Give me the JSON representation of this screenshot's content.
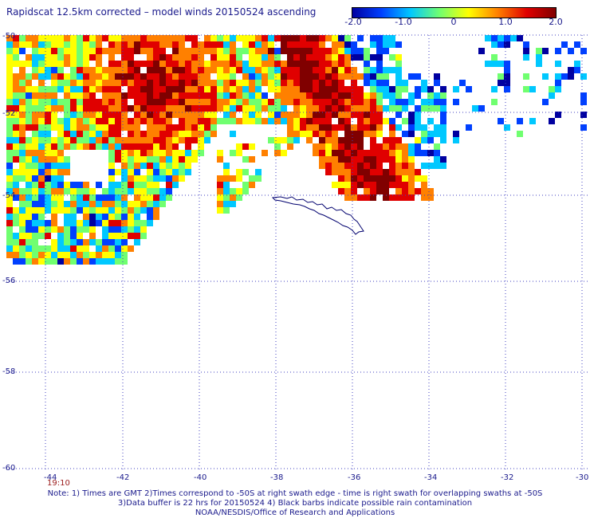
{
  "title": "Rapidscat 12.5km corrected – model winds 20150524 ascending",
  "colorbar": {
    "labels": [
      "-2.0",
      "-1.0",
      "0",
      "1.0",
      "2.0"
    ],
    "stops": [
      "#0000a0",
      "#0040ff",
      "#00c8ff",
      "#70ff70",
      "#ffff00",
      "#ff8000",
      "#e00000",
      "#800000"
    ]
  },
  "map": {
    "lat_labels": [
      "-50",
      "-52",
      "-54",
      "-56",
      "-58",
      "-60"
    ],
    "lon_labels": [
      "-44",
      "-42",
      "-40",
      "-38",
      "-36",
      "-34",
      "-32",
      "-30"
    ],
    "time_label": "19:10",
    "grid_color": "#4040c0",
    "coast_color": "#00006e"
  },
  "notes": {
    "line1": "Note: 1) Times are GMT 2)Times correspond to -50S at right swath edge - time is right swath for overlapping swaths at -50S",
    "line2": "3)Data buffer is 22 hrs for 20150524 4) Black barbs indicate possible rain contamination",
    "line3": "NOAA/NESDIS/Office of Research and Applications"
  }
}
